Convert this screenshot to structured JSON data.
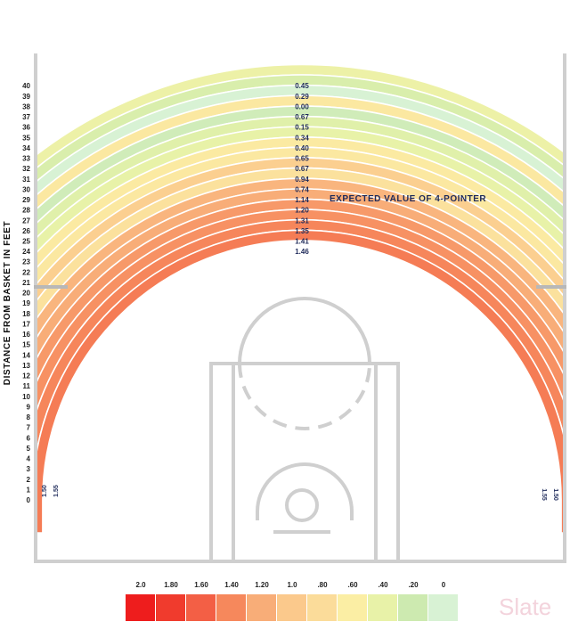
{
  "chart_data": {
    "type": "heatmap",
    "title": "",
    "ylabel": "DISTANCE FROM BASKET IN FEET",
    "annotation": "EXPECTED VALUE OF 4-POINTER",
    "y_ticks": [
      0,
      1,
      2,
      3,
      4,
      5,
      6,
      7,
      8,
      9,
      10,
      11,
      12,
      13,
      14,
      15,
      16,
      17,
      18,
      19,
      20,
      21,
      22,
      23,
      24,
      25,
      26,
      27,
      28,
      29,
      30,
      31,
      32,
      33,
      34,
      35,
      36,
      37,
      38,
      39,
      40
    ],
    "arcs": [
      {
        "distance": 24,
        "value": 1.46,
        "label": "1.46"
      },
      {
        "distance": 25,
        "value": 1.41,
        "label": "1.41"
      },
      {
        "distance": 26,
        "value": 1.35,
        "label": "1.35"
      },
      {
        "distance": 27,
        "value": 1.31,
        "label": "1.31"
      },
      {
        "distance": 28,
        "value": 1.2,
        "label": "1.20"
      },
      {
        "distance": 29,
        "value": 1.14,
        "label": "1.14"
      },
      {
        "distance": 30,
        "value": 0.74,
        "label": "0.74"
      },
      {
        "distance": 31,
        "value": 0.94,
        "label": "0.94"
      },
      {
        "distance": 32,
        "value": 0.67,
        "label": "0.67"
      },
      {
        "distance": 33,
        "value": 0.65,
        "label": "0.65"
      },
      {
        "distance": 34,
        "value": 0.4,
        "label": "0.40"
      },
      {
        "distance": 35,
        "value": 0.34,
        "label": "0.34"
      },
      {
        "distance": 36,
        "value": 0.15,
        "label": "0.15"
      },
      {
        "distance": 37,
        "value": 0.67,
        "label": "0.67"
      },
      {
        "distance": 38,
        "value": 0.0,
        "label": "0.00"
      },
      {
        "distance": 39,
        "value": 0.29,
        "label": "0.29"
      },
      {
        "distance": 40,
        "value": 0.45,
        "label": "0.45"
      }
    ],
    "corner_values": [
      {
        "side": "left",
        "label": "1.50"
      },
      {
        "side": "left",
        "label": "1.55"
      },
      {
        "side": "right",
        "label": "1.55"
      },
      {
        "side": "right",
        "label": "1.50"
      }
    ],
    "legend": {
      "labels": [
        "2.0",
        "1.80",
        "1.60",
        "1.40",
        "1.20",
        "1.0",
        ".80",
        ".60",
        ".40",
        ".20",
        "0"
      ],
      "colors": [
        "#ee1d1d",
        "#f03b2d",
        "#f35f45",
        "#f6885c",
        "#f8ad78",
        "#fbc98c",
        "#fbdc9a",
        "#fbeea4",
        "#e8f2a8",
        "#cdeab0",
        "#d8f2d4"
      ]
    },
    "color_scale": {
      "min": 0,
      "max": 2.0
    }
  },
  "branding": {
    "logo": "Slate"
  }
}
